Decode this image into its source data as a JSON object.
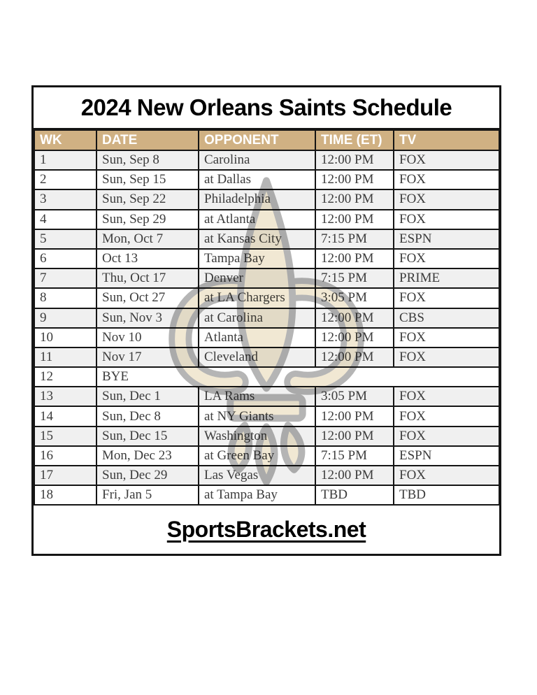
{
  "title": "2024 New Orleans Saints Schedule",
  "footer": {
    "label": "SportsBrackets.net"
  },
  "watermark": {
    "icon": "saints-fleur-de-lis-logo",
    "fill_color": "#eee3c8",
    "outline_color": "#a3a3a3"
  },
  "colors": {
    "header_bg": "#d0b183",
    "header_text": "#ffffff",
    "row_alt_bg": "#f0f0f0",
    "row_bg": "#ffffff",
    "grid_border": "#151515",
    "body_text": "#3c3c3c"
  },
  "table": {
    "columns": [
      "WK",
      "DATE",
      "OPPONENT",
      "TIME (ET)",
      "TV"
    ],
    "rows": [
      {
        "wk": "1",
        "date": "Sun, Sep 8",
        "opponent": "Carolina",
        "time": "12:00 PM",
        "tv": "FOX"
      },
      {
        "wk": "2",
        "date": "Sun, Sep 15",
        "opponent": "at Dallas",
        "time": "12:00 PM",
        "tv": "FOX"
      },
      {
        "wk": "3",
        "date": "Sun, Sep 22",
        "opponent": "Philadelphia",
        "time": "12:00 PM",
        "tv": "FOX"
      },
      {
        "wk": "4",
        "date": "Sun, Sep 29",
        "opponent": "at Atlanta",
        "time": "12:00 PM",
        "tv": "FOX"
      },
      {
        "wk": "5",
        "date": "Mon, Oct 7",
        "opponent": "at Kansas City",
        "time": "7:15 PM",
        "tv": "ESPN"
      },
      {
        "wk": "6",
        "date": "Oct 13",
        "opponent": "Tampa Bay",
        "time": "12:00 PM",
        "tv": "FOX"
      },
      {
        "wk": "7",
        "date": "Thu, Oct 17",
        "opponent": "Denver",
        "time": "7:15 PM",
        "tv": "PRIME"
      },
      {
        "wk": "8",
        "date": "Sun, Oct 27",
        "opponent": "at LA Chargers",
        "time": "3:05 PM",
        "tv": "FOX"
      },
      {
        "wk": "9",
        "date": "Sun, Nov 3",
        "opponent": "at Carolina",
        "time": "12:00 PM",
        "tv": "CBS"
      },
      {
        "wk": "10",
        "date": "Nov 10",
        "opponent": "Atlanta",
        "time": "12:00 PM",
        "tv": "FOX"
      },
      {
        "wk": "11",
        "date": "Nov 17",
        "opponent": "Cleveland",
        "time": "12:00 PM",
        "tv": "FOX"
      },
      {
        "wk": "12",
        "date": "BYE",
        "opponent": "",
        "time": "",
        "tv": "",
        "bye": true
      },
      {
        "wk": "13",
        "date": "Sun, Dec 1",
        "opponent": "LA Rams",
        "time": "3:05 PM",
        "tv": "FOX"
      },
      {
        "wk": "14",
        "date": "Sun, Dec 8",
        "opponent": "at NY Giants",
        "time": "12:00 PM",
        "tv": "FOX"
      },
      {
        "wk": "15",
        "date": "Sun, Dec 15",
        "opponent": "Washington",
        "time": "12:00 PM",
        "tv": "FOX"
      },
      {
        "wk": "16",
        "date": "Mon, Dec 23",
        "opponent": "at Green Bay",
        "time": "7:15 PM",
        "tv": "ESPN"
      },
      {
        "wk": "17",
        "date": "Sun, Dec 29",
        "opponent": "Las Vegas",
        "time": "12:00 PM",
        "tv": "FOX"
      },
      {
        "wk": "18",
        "date": "Fri, Jan 5",
        "opponent": "at Tampa Bay",
        "time": "TBD",
        "tv": "TBD"
      }
    ]
  }
}
